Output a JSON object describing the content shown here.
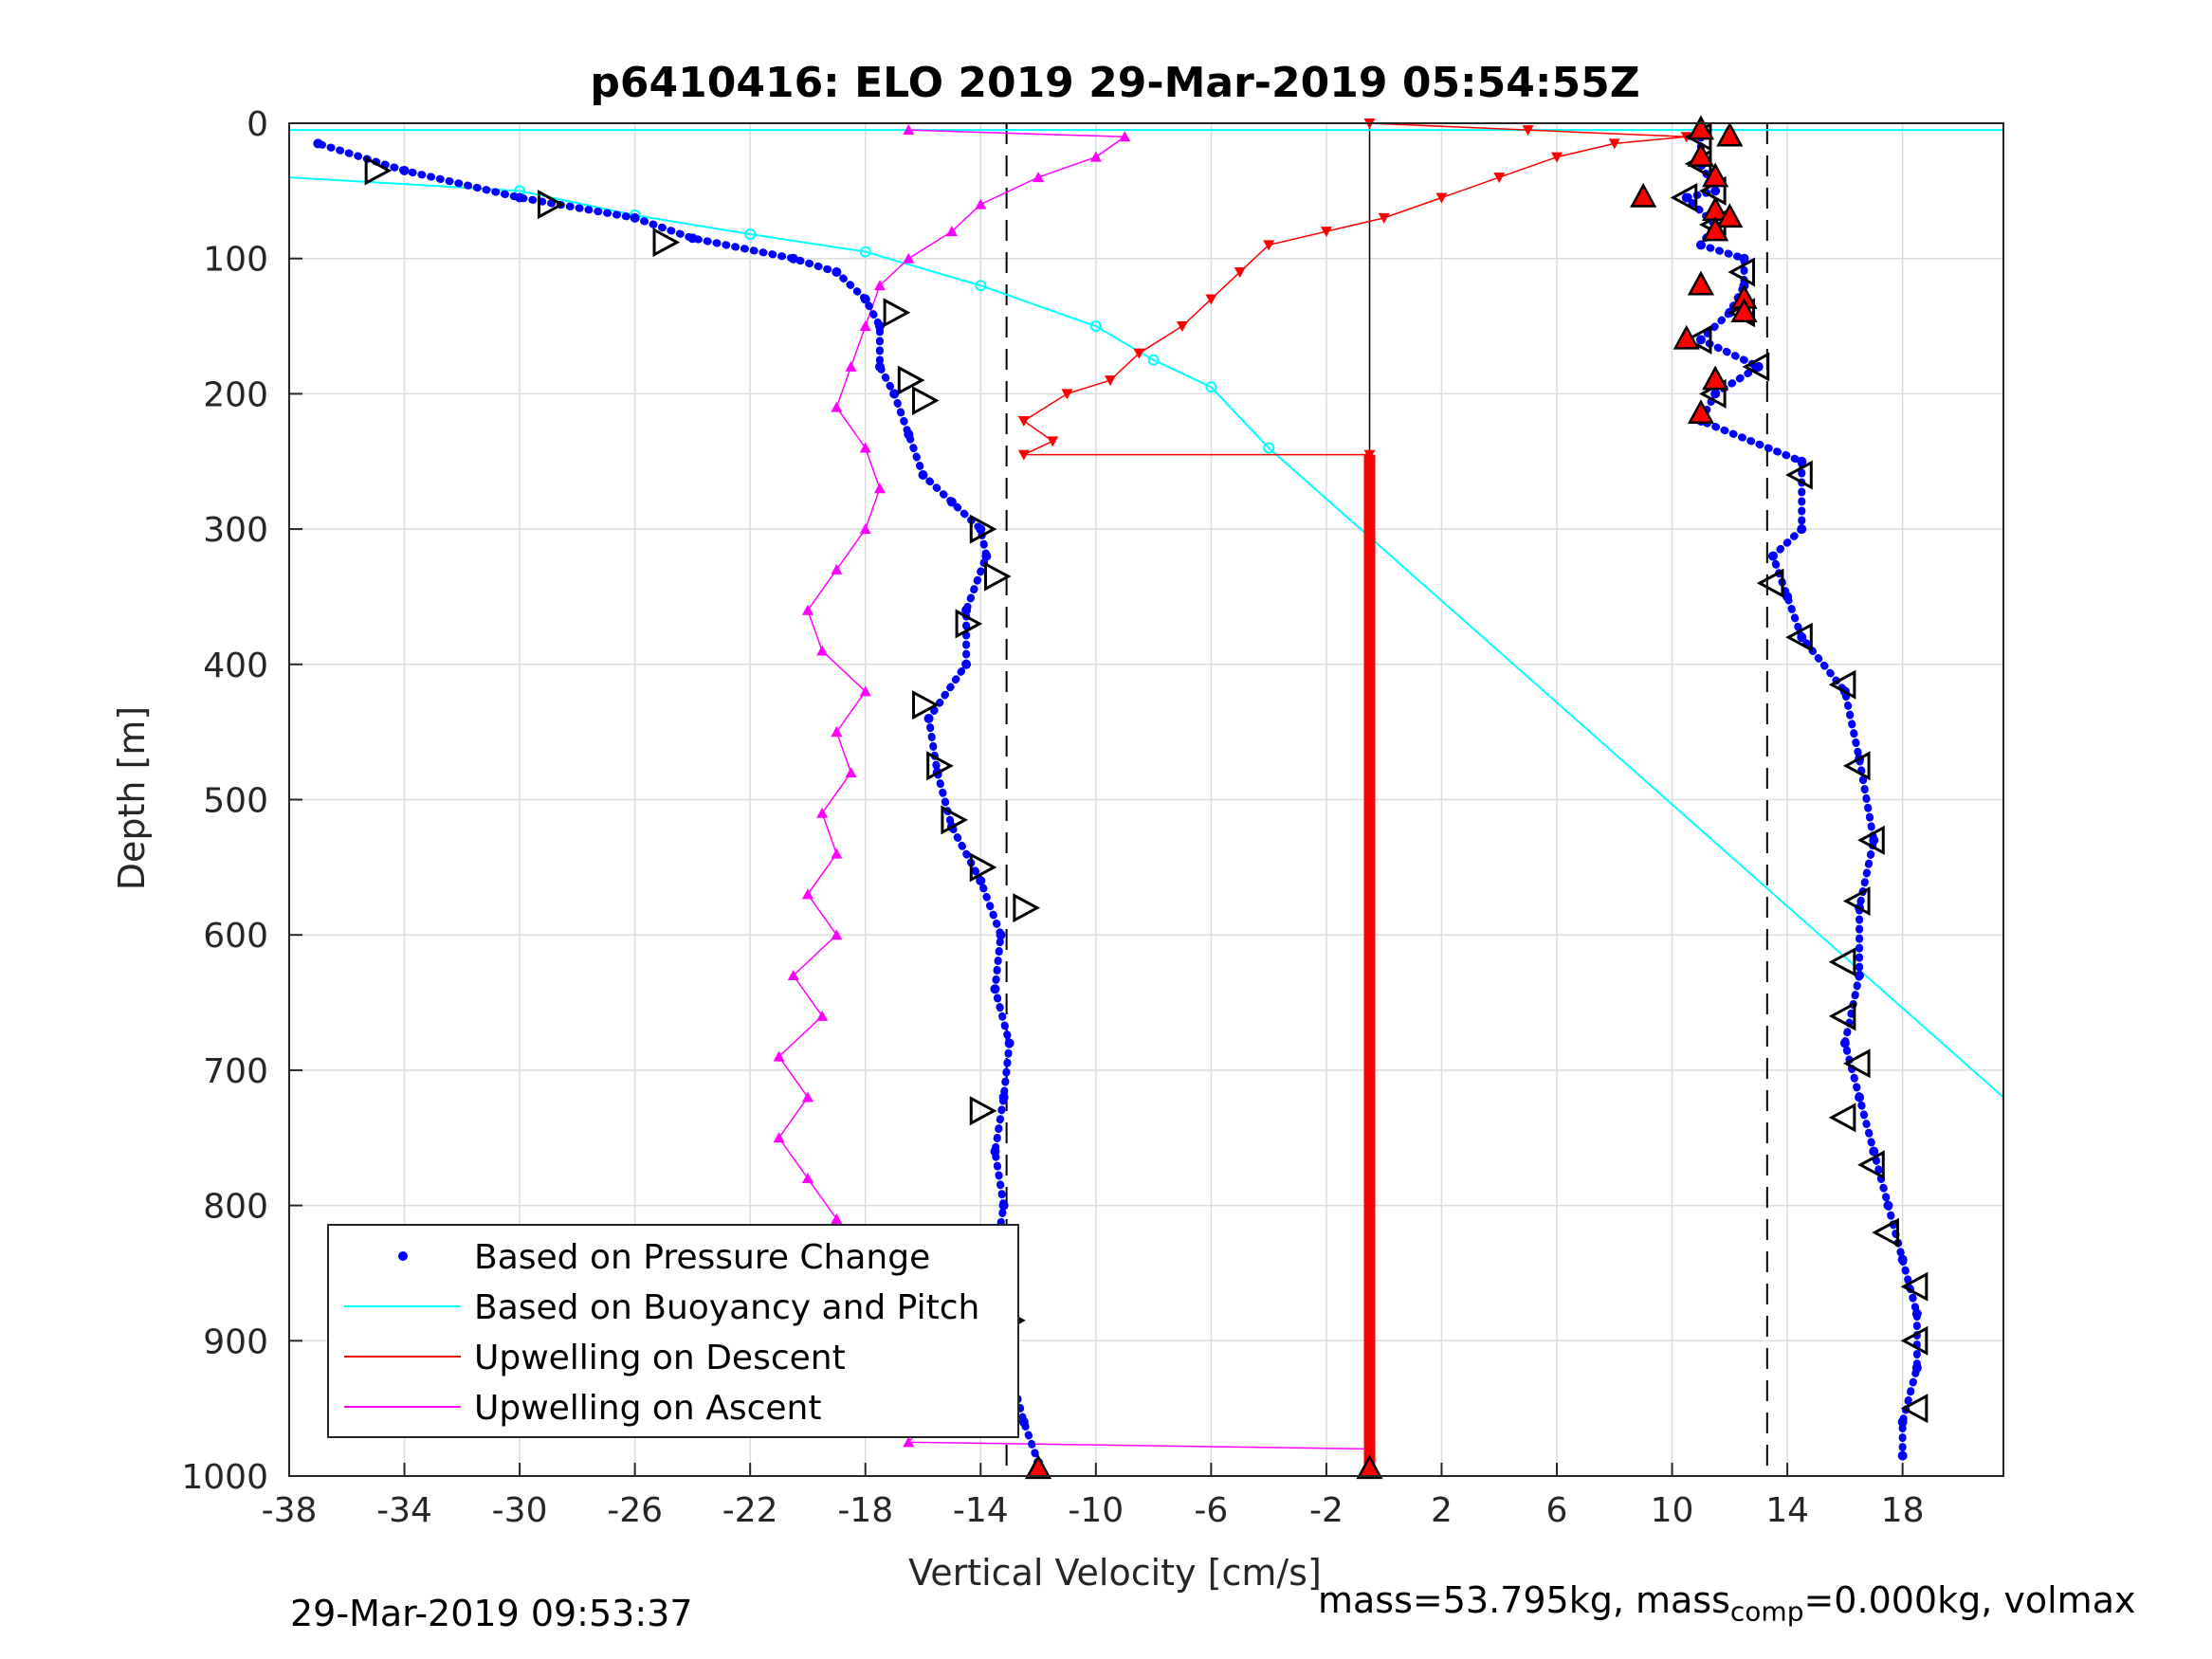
{
  "chart_data": {
    "type": "scatter",
    "title": "p6410416: ELO 2019 29-Mar-2019 05:54:55Z",
    "xlabel": "Vertical Velocity [cm/s]",
    "ylabel": "Depth [m]",
    "xlim": [
      -38,
      21.5
    ],
    "ylim": [
      0,
      1000
    ],
    "y_reversed": true,
    "grid": true,
    "legend_position": "bottom-left",
    "xticks": [
      -38,
      -34,
      -30,
      -26,
      -22,
      -18,
      -14,
      -10,
      -6,
      -2,
      2,
      6,
      10,
      14,
      18
    ],
    "yticks": [
      0,
      100,
      200,
      300,
      400,
      500,
      600,
      700,
      800,
      900,
      1000
    ],
    "colors": {
      "pressure": "#0000ff",
      "buoyancy": "#00ffff",
      "descent": "#ff0000",
      "ascent": "#ff00ff"
    },
    "reference_lines": {
      "dashed_x": [
        -13.1,
        13.3
      ],
      "solid_x": [
        -0.5
      ]
    },
    "series": [
      {
        "name": "Based on Pressure Change",
        "descent_points": [
          [
            11,
            10
          ],
          [
            11,
            30
          ],
          [
            11.5,
            50
          ],
          [
            10.5,
            55
          ],
          [
            11.5,
            75
          ],
          [
            11,
            90
          ],
          [
            12.5,
            100
          ],
          [
            12.5,
            120
          ],
          [
            12,
            140
          ],
          [
            11,
            160
          ],
          [
            13,
            180
          ],
          [
            11.5,
            200
          ],
          [
            11,
            220
          ],
          [
            14.5,
            250
          ],
          [
            14.5,
            300
          ],
          [
            13.5,
            320
          ],
          [
            14,
            350
          ],
          [
            14.5,
            380
          ],
          [
            16,
            420
          ],
          [
            16.5,
            470
          ],
          [
            17,
            530
          ],
          [
            16.5,
            580
          ],
          [
            16.5,
            630
          ],
          [
            16,
            680
          ],
          [
            16.5,
            720
          ],
          [
            17,
            760
          ],
          [
            17.5,
            800
          ],
          [
            18,
            840
          ],
          [
            18.5,
            880
          ],
          [
            18.5,
            920
          ],
          [
            18,
            960
          ],
          [
            18,
            985
          ]
        ],
        "ascent_points": [
          [
            -12,
            990
          ],
          [
            -12.5,
            960
          ],
          [
            -13,
            920
          ],
          [
            -13,
            880
          ],
          [
            -13.5,
            840
          ],
          [
            -13.2,
            800
          ],
          [
            -13.5,
            760
          ],
          [
            -13.2,
            720
          ],
          [
            -13,
            680
          ],
          [
            -13.5,
            640
          ],
          [
            -13.3,
            600
          ],
          [
            -14,
            560
          ],
          [
            -15,
            520
          ],
          [
            -15.5,
            480
          ],
          [
            -15.8,
            440
          ],
          [
            -14.5,
            400
          ],
          [
            -14.5,
            360
          ],
          [
            -13.8,
            320
          ],
          [
            -14,
            300
          ],
          [
            -15,
            280
          ],
          [
            -16,
            260
          ],
          [
            -16.5,
            230
          ],
          [
            -17,
            200
          ],
          [
            -17.5,
            180
          ],
          [
            -17.5,
            150
          ],
          [
            -18,
            130
          ],
          [
            -19,
            110
          ],
          [
            -20.5,
            100
          ],
          [
            -24,
            85
          ],
          [
            -26,
            70
          ],
          [
            -30,
            55
          ],
          [
            -34,
            35
          ],
          [
            -37,
            15
          ]
        ]
      },
      {
        "name": "Based on Buoyancy and Pitch",
        "points": [
          [
            21.5,
            5
          ],
          [
            -38,
            5
          ],
          [
            -38,
            40
          ],
          [
            -30,
            50
          ],
          [
            -26,
            68
          ],
          [
            -22,
            82
          ],
          [
            -18,
            95
          ],
          [
            -14,
            120
          ],
          [
            -10,
            150
          ],
          [
            -8,
            175
          ],
          [
            -6,
            195
          ],
          [
            -4,
            240
          ],
          [
            21.5,
            720
          ]
        ]
      },
      {
        "name": "Upwelling on Descent",
        "points": [
          [
            -0.5,
            0
          ],
          [
            5,
            5
          ],
          [
            10.5,
            10
          ],
          [
            8,
            15
          ],
          [
            6,
            25
          ],
          [
            4,
            40
          ],
          [
            2,
            55
          ],
          [
            0,
            70
          ],
          [
            -2,
            80
          ],
          [
            -4,
            90
          ],
          [
            -5,
            110
          ],
          [
            -6,
            130
          ],
          [
            -7,
            150
          ],
          [
            -8.5,
            170
          ],
          [
            -9.5,
            190
          ],
          [
            -11,
            200
          ],
          [
            -12.5,
            220
          ],
          [
            -11.5,
            235
          ],
          [
            -12.5,
            245
          ],
          [
            -0.5,
            245
          ],
          [
            -0.5,
            1000
          ]
        ]
      },
      {
        "name": "Upwelling on Ascent",
        "points": [
          [
            -0.5,
            980
          ],
          [
            -16.5,
            975
          ],
          [
            -15.5,
            950
          ],
          [
            -17,
            920
          ],
          [
            -18,
            890
          ],
          [
            -17.5,
            860
          ],
          [
            -20,
            840
          ],
          [
            -19,
            810
          ],
          [
            -20,
            780
          ],
          [
            -21,
            750
          ],
          [
            -20,
            720
          ],
          [
            -21,
            690
          ],
          [
            -19.5,
            660
          ],
          [
            -20.5,
            630
          ],
          [
            -19,
            600
          ],
          [
            -20,
            570
          ],
          [
            -19,
            540
          ],
          [
            -19.5,
            510
          ],
          [
            -18.5,
            480
          ],
          [
            -19,
            450
          ],
          [
            -18,
            420
          ],
          [
            -19.5,
            390
          ],
          [
            -20,
            360
          ],
          [
            -19,
            330
          ],
          [
            -18,
            300
          ],
          [
            -17.5,
            270
          ],
          [
            -18,
            240
          ],
          [
            -19,
            210
          ],
          [
            -18.5,
            180
          ],
          [
            -18,
            150
          ],
          [
            -17.5,
            120
          ],
          [
            -16.5,
            100
          ],
          [
            -15,
            80
          ],
          [
            -14,
            60
          ],
          [
            -12,
            40
          ],
          [
            -10,
            25
          ],
          [
            -9,
            10
          ],
          [
            -16.5,
            5
          ]
        ]
      }
    ],
    "triangle_markers": {
      "descent_pressure": [
        [
          11,
          10
        ],
        [
          11,
          30
        ],
        [
          11.5,
          50
        ],
        [
          10.5,
          55
        ],
        [
          11.5,
          75
        ],
        [
          12.5,
          110
        ],
        [
          12.5,
          140
        ],
        [
          11,
          160
        ],
        [
          13,
          180
        ],
        [
          11.5,
          200
        ],
        [
          14.5,
          260
        ],
        [
          13.5,
          340
        ],
        [
          14.5,
          380
        ],
        [
          16,
          415
        ],
        [
          16.5,
          475
        ],
        [
          17,
          530
        ],
        [
          16.5,
          575
        ],
        [
          16,
          620
        ],
        [
          16,
          660
        ],
        [
          16.5,
          695
        ],
        [
          16,
          735
        ],
        [
          17,
          770
        ],
        [
          17.5,
          820
        ],
        [
          18.5,
          860
        ],
        [
          18.5,
          900
        ],
        [
          18.5,
          950
        ]
      ],
      "ascent_pressure": [
        [
          -35,
          35
        ],
        [
          -29,
          60
        ],
        [
          -25,
          88
        ],
        [
          -17,
          140
        ],
        [
          -16.5,
          190
        ],
        [
          -16,
          205
        ],
        [
          -14,
          300
        ],
        [
          -13.5,
          335
        ],
        [
          -14.5,
          370
        ],
        [
          -16,
          430
        ],
        [
          -15.5,
          475
        ],
        [
          -15,
          515
        ],
        [
          -14,
          550
        ],
        [
          -12.5,
          580
        ],
        [
          -14,
          730
        ],
        [
          -13,
          885
        ]
      ],
      "descent_red": [
        [
          11,
          5
        ],
        [
          12,
          10
        ],
        [
          11,
          25
        ],
        [
          11.5,
          40
        ],
        [
          9,
          55
        ],
        [
          11.5,
          65
        ],
        [
          12,
          70
        ],
        [
          11.5,
          80
        ],
        [
          11,
          120
        ],
        [
          12.5,
          130
        ],
        [
          12.5,
          140
        ],
        [
          10.5,
          160
        ],
        [
          11.5,
          190
        ],
        [
          11,
          215
        ],
        [
          -12,
          995
        ],
        [
          -0.5,
          995
        ]
      ]
    }
  },
  "legend": {
    "items": [
      {
        "label": "Based on Pressure Change",
        "kind": "dot",
        "color": "#0000ff"
      },
      {
        "label": "Based on Buoyancy and Pitch",
        "kind": "line",
        "color": "#00ffff"
      },
      {
        "label": "Upwelling on Descent",
        "kind": "line",
        "color": "#ff0000"
      },
      {
        "label": "Upwelling on Ascent",
        "kind": "line",
        "color": "#ff00ff"
      }
    ]
  },
  "footer": {
    "timestamp": "29-Mar-2019 09:53:37",
    "mass_prefix": "mass=53.795kg, mass",
    "mass_sub": "comp",
    "mass_suffix": "=0.000kg, volmax"
  }
}
